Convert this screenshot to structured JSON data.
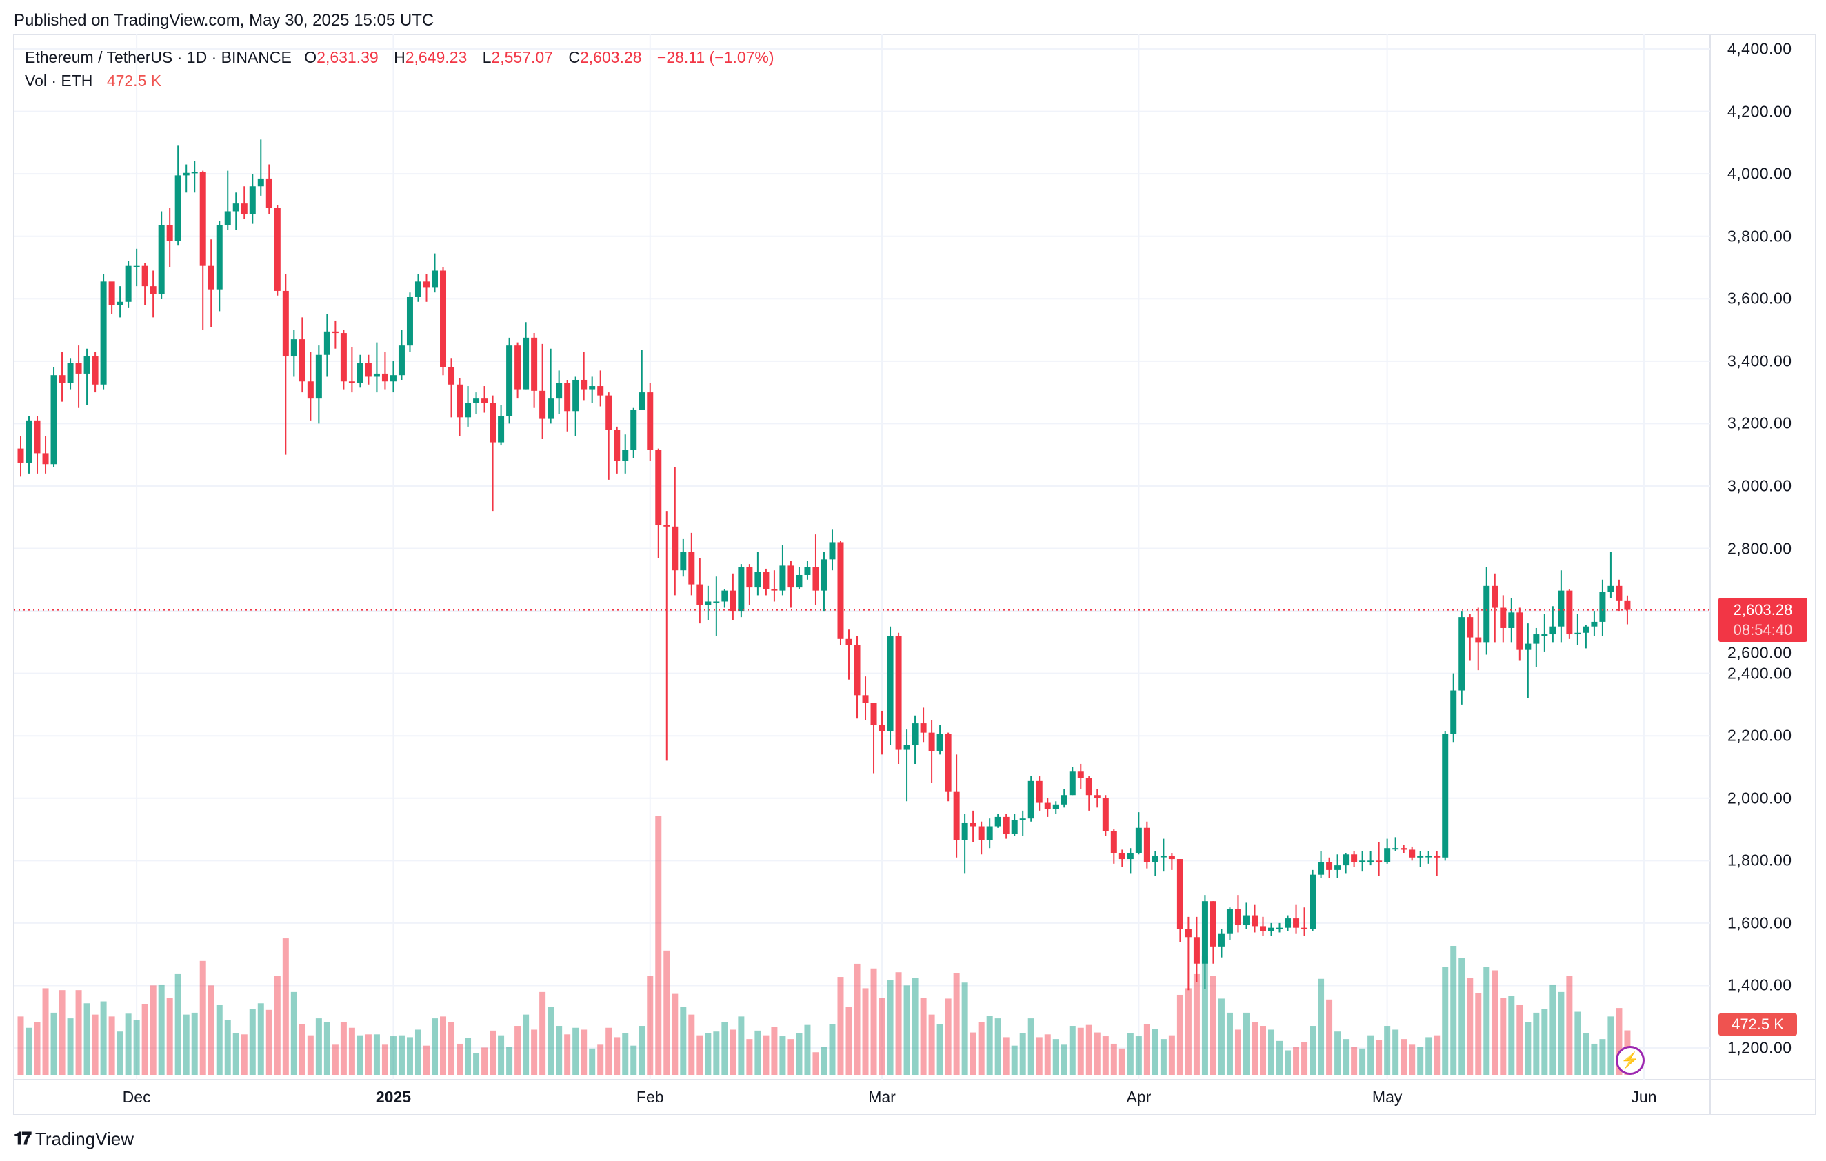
{
  "published": "Published on TradingView.com, May 30, 2025 15:05 UTC",
  "legend": {
    "symbol": "Ethereum / TetherUS · 1D · BINANCE",
    "o_label": "O",
    "o": "2,631.39",
    "h_label": "H",
    "h": "2,649.23",
    "l_label": "L",
    "l": "2,557.07",
    "c_label": "C",
    "c": "2,603.28",
    "change": "−28.11 (−1.07%)",
    "vol_label": "Vol · ETH",
    "vol": "472.5 K"
  },
  "price_badge": {
    "price": "2,603.28",
    "countdown": "08:54:40"
  },
  "volume_badge": "472.5 K",
  "brand": "TradingView",
  "colors": {
    "up": "#089981",
    "down": "#f23645",
    "up_vol": "rgba(8,153,129,0.45)",
    "down_vol": "rgba(242,54,69,0.45)",
    "grid": "#f0f3fa",
    "alert": "#9c27b0"
  },
  "chart_data": {
    "type": "candlestick",
    "title": "Ethereum / TetherUS · 1D · BINANCE",
    "start_date": "2024-11-17",
    "first_open": 3120,
    "ylim": [
      1200,
      4400
    ],
    "y_ticks": [
      "4,400.00",
      "4,200.00",
      "4,000.00",
      "3,800.00",
      "3,600.00",
      "3,400.00",
      "3,200.00",
      "3,000.00",
      "2,800.00",
      "2,600.00",
      "2,400.00",
      "2,200.00",
      "2,000.00",
      "1,800.00",
      "1,600.00",
      "1,400.00",
      "1,200.00"
    ],
    "y_tick_values": [
      4400,
      4200,
      4000,
      3800,
      3600,
      3400,
      3200,
      3000,
      2800,
      2600,
      2400,
      2200,
      2000,
      1800,
      1600,
      1400,
      1200
    ],
    "x_ticks": [
      {
        "label": "Dec",
        "date": "2024-12-01",
        "bold": false
      },
      {
        "label": "2025",
        "date": "2025-01-01",
        "bold": true
      },
      {
        "label": "Feb",
        "date": "2025-02-01",
        "bold": false
      },
      {
        "label": "Mar",
        "date": "2025-03-01",
        "bold": false
      },
      {
        "label": "Apr",
        "date": "2025-04-01",
        "bold": false
      },
      {
        "label": "May",
        "date": "2025-05-01",
        "bold": false
      },
      {
        "label": "Jun",
        "date": "2025-06-01",
        "bold": false
      }
    ],
    "last_price": 2603.28,
    "close": [
      3075,
      3210,
      3105,
      3070,
      3355,
      3330,
      3395,
      3360,
      3415,
      3325,
      3655,
      3580,
      3590,
      3705,
      3705,
      3640,
      3615,
      3835,
      3785,
      3995,
      4003,
      4006,
      3705,
      3630,
      3835,
      3880,
      3905,
      3870,
      3960,
      3985,
      3890,
      3625,
      3415,
      3470,
      3335,
      3280,
      3420,
      3495,
      3490,
      3335,
      3330,
      3395,
      3350,
      3360,
      3335,
      3355,
      3450,
      3605,
      3655,
      3635,
      3690,
      3380,
      3325,
      3220,
      3265,
      3280,
      3265,
      3140,
      3225,
      3450,
      3310,
      3475,
      3305,
      3215,
      3280,
      3330,
      3240,
      3340,
      3310,
      3320,
      3290,
      3180,
      3080,
      3115,
      3245,
      3300,
      3115,
      2875,
      2870,
      2730,
      2790,
      2685,
      2620,
      2630,
      2630,
      2665,
      2600,
      2740,
      2675,
      2725,
      2670,
      2665,
      2745,
      2675,
      2715,
      2740,
      2665,
      2765,
      2820,
      2510,
      2490,
      2330,
      2305,
      2235,
      2215,
      2520,
      2155,
      2170,
      2240,
      2210,
      2150,
      2205,
      2020,
      1865,
      1920,
      1910,
      1865,
      1910,
      1940,
      1885,
      1930,
      1935,
      2055,
      1985,
      1965,
      1980,
      2010,
      2085,
      2065,
      2010,
      2000,
      1895,
      1825,
      1805,
      1825,
      1905,
      1795,
      1815,
      1815,
      1805,
      1580,
      1555,
      1470,
      1670,
      1525,
      1565,
      1645,
      1595,
      1625,
      1590,
      1575,
      1585,
      1585,
      1615,
      1585,
      1580,
      1755,
      1795,
      1770,
      1785,
      1820,
      1795,
      1800,
      1800,
      1795,
      1840,
      1840,
      1835,
      1810,
      1815,
      1815,
      1810,
      2205,
      2345,
      2580,
      2515,
      2500,
      2680,
      2610,
      2545,
      2595,
      2475,
      2495,
      2525,
      2525,
      2550,
      2665,
      2525,
      2530,
      2550,
      2565,
      2660,
      2680,
      2631.39,
      2603.28
    ],
    "high": [
      3160,
      3225,
      3225,
      3160,
      3380,
      3430,
      3410,
      3450,
      3440,
      3430,
      3680,
      3650,
      3640,
      3720,
      3760,
      3715,
      3690,
      3880,
      3890,
      4090,
      4030,
      4040,
      4010,
      3790,
      3850,
      4010,
      3940,
      3960,
      4000,
      4110,
      4030,
      3900,
      3680,
      3500,
      3540,
      3430,
      3450,
      3550,
      3530,
      3500,
      3445,
      3420,
      3420,
      3460,
      3430,
      3400,
      3500,
      3620,
      3680,
      3680,
      3745,
      3700,
      3410,
      3345,
      3320,
      3300,
      3320,
      3290,
      3260,
      3475,
      3460,
      3525,
      3490,
      3455,
      3440,
      3370,
      3340,
      3350,
      3430,
      3350,
      3370,
      3300,
      3190,
      3165,
      3250,
      3435,
      3330,
      3120,
      2920,
      3060,
      2830,
      2850,
      2770,
      2680,
      2710,
      2670,
      2720,
      2750,
      2750,
      2790,
      2735,
      2730,
      2810,
      2760,
      2740,
      2760,
      2845,
      2790,
      2860,
      2825,
      2540,
      2520,
      2390,
      2300,
      2280,
      2550,
      2530,
      2220,
      2265,
      2290,
      2250,
      2235,
      2210,
      2140,
      1950,
      1960,
      1925,
      1935,
      1950,
      1950,
      1950,
      1960,
      2070,
      2070,
      2000,
      1990,
      2030,
      2100,
      2110,
      2070,
      2030,
      2010,
      1900,
      1835,
      1840,
      1955,
      1925,
      1830,
      1870,
      1825,
      1805,
      1620,
      1620,
      1690,
      1670,
      1580,
      1650,
      1690,
      1665,
      1660,
      1620,
      1600,
      1600,
      1625,
      1660,
      1650,
      1770,
      1830,
      1810,
      1820,
      1825,
      1830,
      1830,
      1830,
      1860,
      1870,
      1875,
      1850,
      1845,
      1830,
      1830,
      1830,
      2215,
      2400,
      2600,
      2590,
      2610,
      2740,
      2720,
      2650,
      2640,
      2610,
      2560,
      2545,
      2590,
      2615,
      2730,
      2670,
      2590,
      2555,
      2600,
      2700,
      2790,
      2700,
      2649.23
    ],
    "low": [
      3030,
      3040,
      3040,
      3040,
      3060,
      3270,
      3310,
      3250,
      3260,
      3300,
      3310,
      3550,
      3540,
      3570,
      3640,
      3580,
      3540,
      3600,
      3700,
      3770,
      3940,
      3940,
      3500,
      3510,
      3560,
      3820,
      3820,
      3855,
      3840,
      3930,
      3870,
      3610,
      3100,
      3350,
      3300,
      3210,
      3200,
      3350,
      3440,
      3310,
      3300,
      3315,
      3325,
      3300,
      3310,
      3300,
      3340,
      3430,
      3590,
      3590,
      3620,
      3355,
      3220,
      3160,
      3190,
      3230,
      3235,
      2920,
      3130,
      3200,
      3280,
      3310,
      3250,
      3150,
      3200,
      3230,
      3175,
      3160,
      3275,
      3265,
      3255,
      3020,
      3040,
      3040,
      3090,
      3260,
      3080,
      2770,
      2120,
      2650,
      2710,
      2650,
      2560,
      2570,
      2520,
      2610,
      2570,
      2580,
      2620,
      2650,
      2650,
      2630,
      2650,
      2610,
      2670,
      2700,
      2620,
      2600,
      2730,
      2490,
      2380,
      2255,
      2250,
      2080,
      2140,
      2170,
      2110,
      1990,
      2110,
      2180,
      2050,
      2140,
      1990,
      1810,
      1760,
      1860,
      1820,
      1840,
      1905,
      1870,
      1880,
      1880,
      1925,
      1960,
      1940,
      1950,
      1970,
      2010,
      2030,
      1960,
      1970,
      1880,
      1790,
      1780,
      1760,
      1820,
      1775,
      1750,
      1765,
      1770,
      1540,
      1385,
      1410,
      1390,
      1470,
      1490,
      1545,
      1570,
      1580,
      1570,
      1560,
      1560,
      1570,
      1575,
      1565,
      1560,
      1575,
      1745,
      1745,
      1745,
      1760,
      1780,
      1765,
      1785,
      1750,
      1790,
      1830,
      1825,
      1800,
      1780,
      1790,
      1750,
      1800,
      2180,
      2300,
      2440,
      2410,
      2460,
      2500,
      2500,
      2500,
      2440,
      2320,
      2420,
      2470,
      2500,
      2500,
      2510,
      2490,
      2480,
      2520,
      2520,
      2640,
      2600,
      2557.07
    ],
    "volume_k": [
      620,
      500,
      560,
      920,
      660,
      900,
      600,
      900,
      760,
      640,
      780,
      620,
      460,
      650,
      580,
      750,
      950,
      960,
      820,
      1070,
      640,
      660,
      1210,
      950,
      740,
      580,
      440,
      430,
      700,
      760,
      690,
      1050,
      1450,
      880,
      540,
      420,
      600,
      560,
      320,
      560,
      500,
      420,
      430,
      430,
      320,
      410,
      420,
      400,
      480,
      310,
      600,
      620,
      560,
      330,
      390,
      230,
      290,
      470,
      420,
      300,
      520,
      640,
      480,
      880,
      720,
      520,
      430,
      500,
      480,
      280,
      320,
      500,
      400,
      440,
      310,
      520,
      1050,
      2750,
      1320,
      860,
      720,
      640,
      420,
      440,
      460,
      560,
      480,
      620,
      380,
      470,
      420,
      510,
      410,
      380,
      440,
      530,
      240,
      300,
      540,
      1040,
      720,
      1180,
      920,
      1130,
      820,
      1010,
      1090,
      950,
      1030,
      820,
      640,
      540,
      810,
      1080,
      980,
      450,
      560,
      630,
      600,
      400,
      310,
      440,
      600,
      400,
      430,
      380,
      320,
      520,
      500,
      530,
      450,
      410,
      330,
      280,
      440,
      410,
      540,
      490,
      380,
      420,
      850,
      920,
      1070,
      1260,
      1050,
      810,
      660,
      480,
      660,
      560,
      520,
      480,
      360,
      260,
      300,
      350,
      520,
      1020,
      800,
      460,
      380,
      300,
      280,
      420,
      370,
      520,
      480,
      380,
      320,
      300,
      400,
      420,
      1150,
      1370,
      1240,
      1030,
      870,
      1150,
      1110,
      820,
      840,
      740,
      560,
      660,
      700,
      960,
      880,
      1050,
      670,
      440,
      330,
      380,
      620,
      710,
      472.5
    ]
  }
}
